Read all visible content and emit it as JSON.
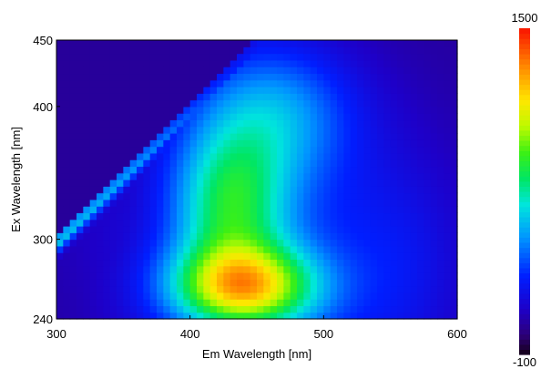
{
  "chart_data": {
    "type": "heatmap",
    "title": "",
    "xlabel": "Em Wavelength [nm]",
    "ylabel": "Ex Wavelength [nm]",
    "xlim": [
      300,
      600
    ],
    "ylim": [
      240,
      450
    ],
    "xticks": [
      300,
      400,
      500,
      600
    ],
    "yticks": [
      240,
      300,
      400,
      450
    ],
    "colorbar": {
      "min": -100,
      "max": 1500,
      "min_label": "-100",
      "max_label": "1500",
      "colormap": "jet-like"
    },
    "background_level": 50,
    "rayleigh_scatter": {
      "description": "diagonal scatter line Em = Ex",
      "x_start": 300,
      "x_end": 380,
      "y_start": 280,
      "y_end": 435,
      "peak_value": 950
    },
    "peaks": [
      {
        "em": 440,
        "ex": 264,
        "value": 1000
      },
      {
        "em": 430,
        "ex": 320,
        "value": 720
      },
      {
        "em": 460,
        "ex": 395,
        "value": 520
      }
    ]
  }
}
